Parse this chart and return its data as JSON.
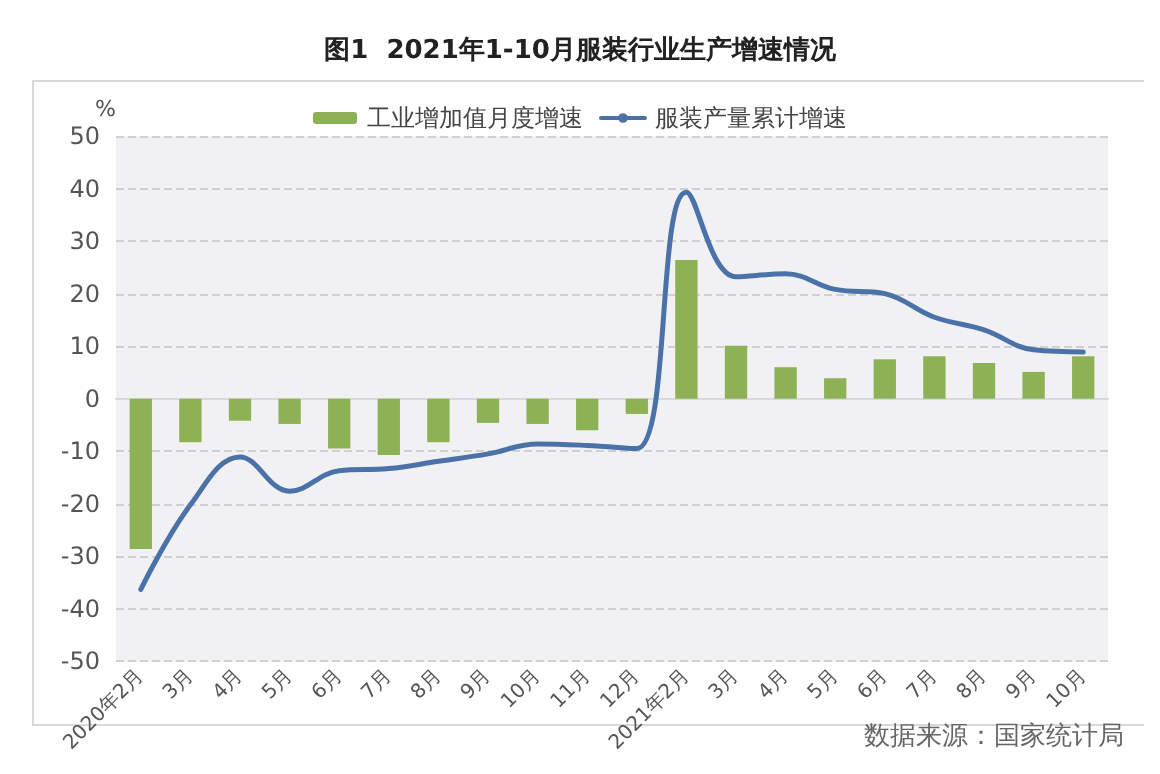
{
  "chart_data": {
    "type": "bar",
    "title": "图1  2021年1-10月服装行业生产增速情况",
    "ylabel": "%",
    "categories": [
      "2020年2月",
      "3月",
      "4月",
      "5月",
      "6月",
      "7月",
      "8月",
      "9月",
      "10月",
      "11月",
      "12月",
      "2021年2月",
      "3月",
      "4月",
      "5月",
      "6月",
      "7月",
      "8月",
      "9月",
      "10月"
    ],
    "series": [
      {
        "name": "工业增加值月度增速",
        "color": "#8db255",
        "values": [
          -28.6,
          -8.3,
          -4.2,
          -4.8,
          -9.5,
          -10.7,
          -8.3,
          -4.6,
          -4.8,
          -6.0,
          -2.9,
          26.4,
          10.1,
          6.0,
          3.9,
          7.5,
          8.1,
          6.8,
          5.1,
          8.1
        ]
      },
      {
        "name": "服装产量累计增速",
        "type": "line",
        "color": "#4a72a8",
        "values": [
          -36.3,
          -20.2,
          -11.1,
          -17.6,
          -13.7,
          -13.3,
          -11.9,
          -10.5,
          -8.6,
          -8.9,
          -9.5,
          39.3,
          23.2,
          23.8,
          20.8,
          20.0,
          15.5,
          13.1,
          9.3,
          8.9
        ]
      }
    ],
    "ylim": [
      -50,
      50
    ],
    "yticks": [
      -50,
      -40,
      -30,
      -20,
      -10,
      0,
      10,
      20,
      30,
      40,
      50
    ],
    "grid": "y",
    "legend": "top",
    "marker": "none",
    "annotations": [
      "数据来源：国家统计局"
    ]
  }
}
